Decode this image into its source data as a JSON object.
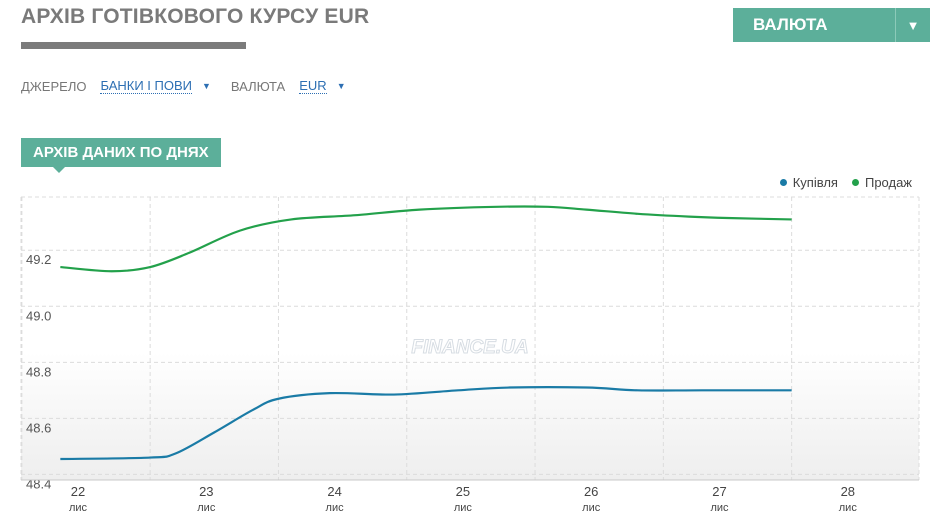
{
  "page": {
    "title": "АРХІВ ГОТІВКОВОГО КУРСУ EUR"
  },
  "currency_dropdown": {
    "label": "ВАЛЮТА",
    "arrow": "▼"
  },
  "filters": {
    "source_label": "ДЖЕРЕЛО",
    "source_value": "БАНКИ І ПОВИ",
    "currency_label": "ВАЛЮТА",
    "currency_value": "EUR",
    "caret": "▼"
  },
  "section": {
    "tab_label": "АРХІВ ДАНИХ ПО ДНЯХ"
  },
  "watermark": "FINANCE.UA",
  "colors": {
    "accent": "#5caf9a",
    "buy": "#1a7ba6",
    "sell": "#23a14b"
  },
  "chart_data": {
    "type": "line",
    "title": "",
    "xlabel": "",
    "ylabel": "",
    "x": [
      {
        "day": "22",
        "month": "лис"
      },
      {
        "day": "23",
        "month": "лис"
      },
      {
        "day": "24",
        "month": "лис"
      },
      {
        "day": "25",
        "month": "лис"
      },
      {
        "day": "26",
        "month": "лис"
      },
      {
        "day": "27",
        "month": "лис"
      },
      {
        "day": "28",
        "month": "лис"
      }
    ],
    "ylim": [
      48.38,
      49.39
    ],
    "yticks": [
      "48.4",
      "48.6",
      "48.8",
      "49.0",
      "49.2"
    ],
    "grid": true,
    "legend_position": "top-right",
    "series": [
      {
        "name": "Купівля",
        "color": "#1a7ba6",
        "points": [
          [
            21.8,
            48.455
          ],
          [
            22.5,
            48.46
          ],
          [
            22.7,
            48.475
          ],
          [
            23.0,
            48.55
          ],
          [
            23.3,
            48.63
          ],
          [
            23.5,
            48.67
          ],
          [
            23.9,
            48.69
          ],
          [
            24.4,
            48.685
          ],
          [
            24.9,
            48.7
          ],
          [
            25.3,
            48.71
          ],
          [
            25.9,
            48.71
          ],
          [
            26.3,
            48.7
          ],
          [
            26.8,
            48.7
          ],
          [
            27.5,
            48.7
          ]
        ]
      },
      {
        "name": "Продаж",
        "color": "#23a14b",
        "points": [
          [
            21.8,
            49.14
          ],
          [
            22.2,
            49.125
          ],
          [
            22.5,
            49.14
          ],
          [
            22.8,
            49.19
          ],
          [
            23.2,
            49.27
          ],
          [
            23.6,
            49.31
          ],
          [
            24.1,
            49.325
          ],
          [
            24.6,
            49.345
          ],
          [
            25.2,
            49.355
          ],
          [
            25.6,
            49.355
          ],
          [
            25.9,
            49.345
          ],
          [
            26.3,
            49.33
          ],
          [
            26.7,
            49.32
          ],
          [
            27.0,
            49.315
          ],
          [
            27.5,
            49.31
          ]
        ]
      }
    ]
  }
}
